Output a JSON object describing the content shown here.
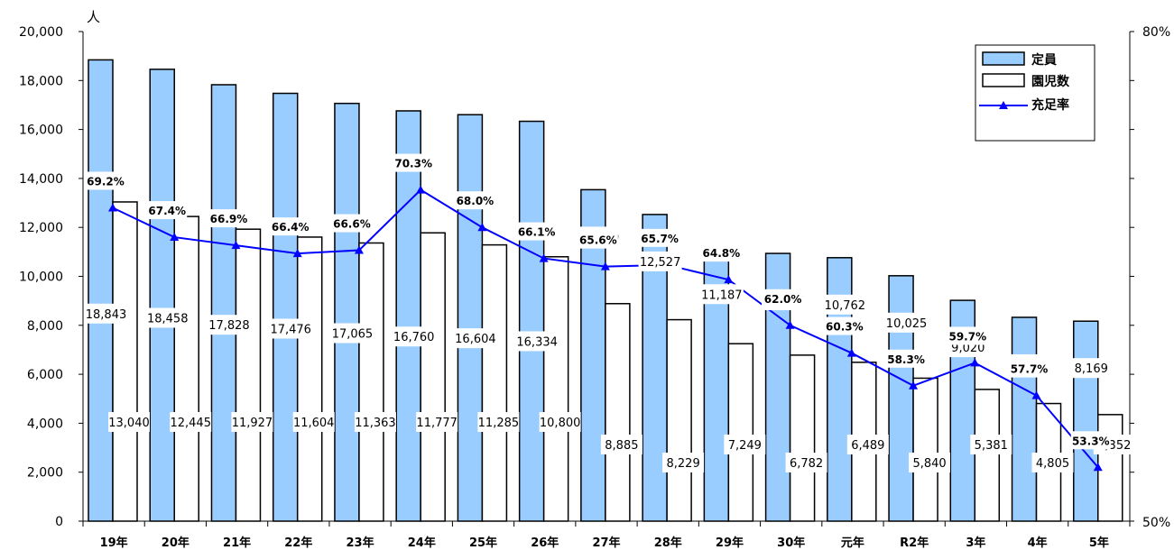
{
  "chart_data": {
    "type": "bar",
    "categories": [
      "19年",
      "20年",
      "21年",
      "22年",
      "23年",
      "24年",
      "25年",
      "26年",
      "27年",
      "28年",
      "29年",
      "30年",
      "元年",
      "R2年",
      "3年",
      "4年",
      "5年"
    ],
    "series": [
      {
        "name": "定員",
        "kind": "bar",
        "color": "#99ccff",
        "values": [
          18843,
          18458,
          17828,
          17476,
          17065,
          16760,
          16604,
          16334,
          13540,
          12527,
          11187,
          10937,
          10762,
          10025,
          9020,
          8326,
          8169
        ],
        "labels": [
          "18,843",
          "18,458",
          "17,828",
          "17,476",
          "17,065",
          "16,760",
          "16,604",
          "16,334",
          "13,540",
          "12,527",
          "11,187",
          "10,937",
          "10,762",
          "10,025",
          "9,020",
          "8,326",
          "8,169"
        ]
      },
      {
        "name": "園児数",
        "kind": "bar",
        "color": "#ffffff",
        "values": [
          13040,
          12445,
          11927,
          11604,
          11363,
          11777,
          11285,
          10800,
          8885,
          8229,
          7249,
          6782,
          6489,
          5840,
          5381,
          4805,
          4352
        ],
        "labels": [
          "13,040",
          "12,445",
          "11,927",
          "11,604",
          "11,363",
          "11,777",
          "11,285",
          "10,800",
          "8,885",
          "8,229",
          "7,249",
          "6,782",
          "6,489",
          "5,840",
          "5,381",
          "4,805",
          "4,352"
        ]
      },
      {
        "name": "充足率",
        "kind": "line",
        "axis": "right",
        "color": "#0000ff",
        "values": [
          69.2,
          67.4,
          66.9,
          66.4,
          66.6,
          70.3,
          68.0,
          66.1,
          65.6,
          65.7,
          64.8,
          62.0,
          60.3,
          58.3,
          59.7,
          57.7,
          53.3
        ],
        "labels": [
          "69.2%",
          "67.4%",
          "66.9%",
          "66.4%",
          "66.6%",
          "70.3%",
          "68.0%",
          "66.1%",
          "65.6%",
          "65.7%",
          "64.8%",
          "62.0%",
          "60.3%",
          "58.3%",
          "59.7%",
          "57.7%",
          "53.3%"
        ]
      }
    ],
    "y_left": {
      "unit": "人",
      "ylim": [
        0,
        20000
      ],
      "ticks": [
        "0",
        "2,000",
        "4,000",
        "6,000",
        "8,000",
        "10,000",
        "12,000",
        "14,000",
        "16,000",
        "18,000",
        "20,000"
      ]
    },
    "y_right": {
      "ylim": [
        50,
        80
      ],
      "ticks": [
        "50%",
        "80%"
      ]
    },
    "grid": false,
    "legend": "top-right"
  }
}
